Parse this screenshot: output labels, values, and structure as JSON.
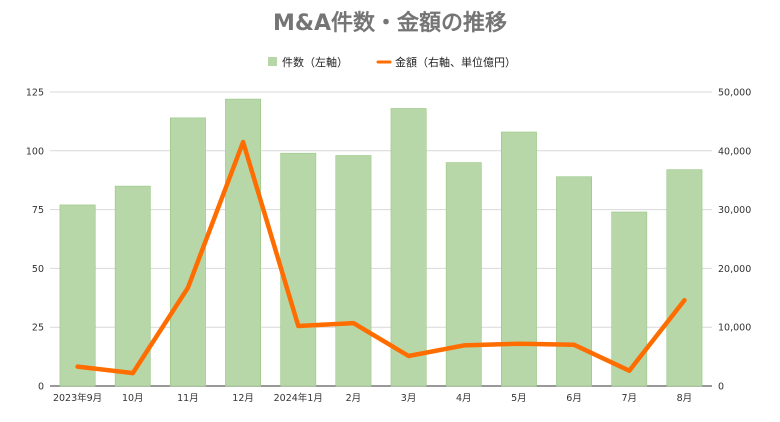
{
  "chart_data": {
    "type": "bar+line",
    "title": "M&A件数・金額の推移",
    "categories": [
      "2023年9月",
      "10月",
      "11月",
      "12月",
      "2024年1月",
      "2月",
      "3月",
      "4月",
      "5月",
      "6月",
      "7月",
      "8月"
    ],
    "series": [
      {
        "name": "件数（左軸）",
        "type": "bar",
        "axis": "left",
        "color": "#b7d7a8",
        "values": [
          77,
          85,
          114,
          122,
          99,
          98,
          118,
          95,
          108,
          89,
          74,
          92
        ]
      },
      {
        "name": "金額（右軸、単位億円）",
        "type": "line",
        "axis": "right",
        "color": "#ff6d01",
        "values": [
          3300,
          2200,
          16700,
          41500,
          10200,
          10700,
          5100,
          6900,
          7200,
          7000,
          2600,
          14600
        ]
      }
    ],
    "y_left": {
      "ylim": [
        0,
        125
      ],
      "ticks": [
        "0",
        "25",
        "50",
        "75",
        "100",
        "125"
      ]
    },
    "y_right": {
      "ylim": [
        0,
        50000
      ],
      "ticks": [
        "0",
        "10,000",
        "20,000",
        "30,000",
        "40,000",
        "50,000"
      ]
    },
    "grid": true,
    "legend_position": "top-center"
  }
}
